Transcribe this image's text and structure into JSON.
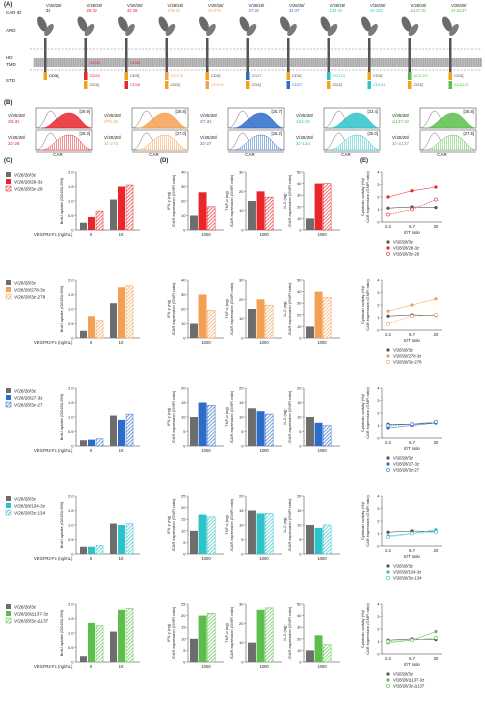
{
  "panels": {
    "a": "(A)",
    "b": "(B)",
    "c": "(C)",
    "d": "(D)",
    "e": "(E)"
  },
  "colors": {
    "gray": "#6d6d6d",
    "red": "#e8262b",
    "orange": "#f4a052",
    "blue": "#2d6cc9",
    "cyan": "#2ec3c9",
    "green": "#5cbf4b",
    "dark": "#333333"
  },
  "diagram": {
    "region_labels": [
      "CAR ID",
      "ARD",
      "HD",
      "TMD",
      "STD"
    ],
    "constructs": [
      {
        "name": [
          "V/28/28/",
          "3z"
        ],
        "color": "#6d6d6d",
        "domains": [
          "",
          "CD3ζ"
        ]
      },
      {
        "name": [
          "V/28/28/",
          "28-3z"
        ],
        "color": "#e8262b",
        "domains": [
          "CD28",
          "CD3ζ"
        ]
      },
      {
        "name": [
          "V/28/28/",
          "3z-28"
        ],
        "color": "#e8262b",
        "domains": [
          "CD3ζ",
          "CD28"
        ]
      },
      {
        "name": [
          "V/28/28/",
          "278-3z"
        ],
        "color": "#f4a052",
        "domains": [
          "CD278",
          "CD3ζ"
        ]
      },
      {
        "name": [
          "V/28/28/",
          "3z-278"
        ],
        "color": "#f4a052",
        "domains": [
          "CD3ζ",
          "CD278"
        ]
      },
      {
        "name": [
          "V/28/28/",
          "27-3z"
        ],
        "color": "#2d6cc9",
        "domains": [
          "CD27",
          "CD3ζ"
        ]
      },
      {
        "name": [
          "V/28/28/",
          "3z-27"
        ],
        "color": "#2d6cc9",
        "domains": [
          "CD3ζ",
          "CD27"
        ]
      },
      {
        "name": [
          "V/28/28/",
          "134-3z"
        ],
        "color": "#2ec3c9",
        "domains": [
          "CD134",
          "CD3ζ"
        ]
      },
      {
        "name": [
          "V/28/28/",
          "3z-134"
        ],
        "color": "#2ec3c9",
        "domains": [
          "CD3ζ",
          "CD134"
        ]
      },
      {
        "name": [
          "V/28/28/",
          "Δ137-3z"
        ],
        "color": "#5cbf4b",
        "domains": [
          "ΔCD137",
          "CD3ζ"
        ]
      },
      {
        "name": [
          "V/28/28/",
          "3z-Δ137"
        ],
        "color": "#5cbf4b",
        "domains": [
          "CD3ζ",
          "ΔCD137"
        ]
      }
    ]
  },
  "histograms": {
    "xlabel": "CAR",
    "items": [
      {
        "label": [
          "V/28/28/",
          "28-3z"
        ],
        "value": "[29.9]",
        "color": "#e8262b"
      },
      {
        "label": [
          "V/28/28/",
          "3z-28"
        ],
        "value": "[29.3]",
        "color": "#e8262b"
      },
      {
        "label": [
          "V/28/28/",
          "278-3z"
        ],
        "value": "[29.8]",
        "color": "#f4a052"
      },
      {
        "label": [
          "V/28/28/",
          "3z-278"
        ],
        "value": "[27.0]",
        "color": "#f4a052"
      },
      {
        "label": [
          "V/28/28/",
          "27-3z"
        ],
        "value": "[25.7]",
        "color": "#2d6cc9"
      },
      {
        "label": [
          "V/28/28/",
          "3z-27"
        ],
        "value": "[26.2]",
        "color": "#2d6cc9"
      },
      {
        "label": [
          "V/28/28/",
          "134-3z"
        ],
        "value": "[23.4]",
        "color": "#2ec3c9"
      },
      {
        "label": [
          "V/28/28/",
          "3z-134"
        ],
        "value": "[25.0]",
        "color": "#2ec3c9"
      },
      {
        "label": [
          "V/28/28/",
          "Δ137-3z"
        ],
        "value": "[28.8]",
        "color": "#5cbf4b"
      },
      {
        "label": [
          "V/28/28/",
          "3z-Δ137"
        ],
        "value": "[27.5]",
        "color": "#5cbf4b"
      }
    ]
  },
  "chart_data": {
    "type": "bar",
    "rows": [
      {
        "color": "#e8262b",
        "legend": [
          "V/28/28/3z",
          "V/28/28/28-3z",
          "V/28/28/3z-28"
        ],
        "c": {
          "values": [
            [
              0.25,
              0.45,
              0.65
            ],
            [
              1.05,
              1.5,
              1.55
            ]
          ],
          "ymax": 2.0,
          "yticks": [
            "0",
            "0.5",
            "1.0",
            "1.5",
            "2.0"
          ]
        },
        "ifn": {
          "values": [
            10,
            26,
            16
          ],
          "ymax": 40,
          "yticks": [
            "0",
            "10",
            "20",
            "30",
            "40"
          ]
        },
        "tnf": {
          "values": [
            15,
            20,
            17
          ],
          "ymax": 30,
          "yticks": [
            "0",
            "10",
            "20",
            "30"
          ]
        },
        "il2": {
          "values": [
            10,
            40,
            40
          ],
          "ymax": 50,
          "yticks": [
            "0",
            "10",
            "20",
            "30",
            "40",
            "50"
          ]
        },
        "e": {
          "values": [
            [
              1.1,
              1.2,
              1.15
            ],
            [
              2.0,
              2.5,
              2.8
            ],
            [
              0.6,
              1.0,
              1.8
            ]
          ],
          "ymax": 4,
          "yticks": [
            "0",
            "1",
            "2",
            "3",
            "4"
          ]
        }
      },
      {
        "color": "#f4a052",
        "legend": [
          "V/28/28/3z",
          "V/28/28/278-3z",
          "V/28/28/3z-278"
        ],
        "c": {
          "values": [
            [
              0.25,
              0.75,
              0.6
            ],
            [
              1.2,
              1.75,
              1.8
            ]
          ],
          "ymax": 2.0,
          "yticks": [
            "0",
            "0.5",
            "1.0",
            "1.5",
            "2.0"
          ]
        },
        "ifn": {
          "values": [
            10,
            30,
            19
          ],
          "ymax": 40,
          "yticks": [
            "0",
            "10",
            "20",
            "30",
            "40"
          ]
        },
        "tnf": {
          "values": [
            15,
            20,
            17
          ],
          "ymax": 30,
          "yticks": [
            "0",
            "10",
            "20",
            "30"
          ]
        },
        "il2": {
          "values": [
            10,
            40,
            35
          ],
          "ymax": 50,
          "yticks": [
            "0",
            "10",
            "20",
            "30",
            "40",
            "50"
          ]
        },
        "e": {
          "values": [
            [
              1.1,
              1.2,
              1.15
            ],
            [
              1.5,
              2.0,
              2.5
            ],
            [
              0.5,
              1.1,
              1.2
            ]
          ],
          "ymax": 4,
          "yticks": [
            "0",
            "1",
            "2",
            "3",
            "4"
          ]
        }
      },
      {
        "color": "#2d6cc9",
        "legend": [
          "V/28/28/3z",
          "V/28/28/27-3z",
          "V/28/28/3z-27"
        ],
        "c": {
          "values": [
            [
              0.2,
              0.22,
              0.25
            ],
            [
              1.05,
              0.9,
              1.1
            ]
          ],
          "ymax": 2.0,
          "yticks": [
            "0",
            "0.5",
            "1.0",
            "1.5",
            "2.0"
          ]
        },
        "ifn": {
          "values": [
            10,
            15,
            14
          ],
          "ymax": 20,
          "yticks": [
            "0",
            "5",
            "10",
            "15",
            "20"
          ]
        },
        "tnf": {
          "values": [
            13,
            12,
            11
          ],
          "ymax": 20,
          "yticks": [
            "0",
            "5",
            "10",
            "15",
            "20"
          ]
        },
        "il2": {
          "values": [
            10,
            8,
            7
          ],
          "ymax": 20,
          "yticks": [
            "0",
            "5",
            "10",
            "15",
            "20"
          ]
        },
        "e": {
          "values": [
            [
              1.1,
              1.1,
              1.2
            ],
            [
              0.8,
              1.0,
              1.2
            ],
            [
              1.0,
              1.1,
              1.3
            ]
          ],
          "ymax": 4,
          "yticks": [
            "0",
            "1",
            "2",
            "3",
            "4"
          ]
        }
      },
      {
        "color": "#2ec3c9",
        "legend": [
          "V/28/28/3z",
          "V/28/28/134-3z",
          "V/28/28/3z-134"
        ],
        "c": {
          "values": [
            [
              0.25,
              0.25,
              0.3
            ],
            [
              1.05,
              1.0,
              1.05
            ]
          ],
          "ymax": 2.0,
          "yticks": [
            "0",
            "0.5",
            "1.0",
            "1.5",
            "2.0"
          ]
        },
        "ifn": {
          "values": [
            10,
            17,
            16
          ],
          "ymax": 25,
          "yticks": [
            "0",
            "5",
            "10",
            "15",
            "20",
            "25"
          ]
        },
        "tnf": {
          "values": [
            15,
            14,
            14
          ],
          "ymax": 20,
          "yticks": [
            "0",
            "5",
            "10",
            "15",
            "20"
          ]
        },
        "il2": {
          "values": [
            10,
            9,
            10
          ],
          "ymax": 20,
          "yticks": [
            "0",
            "5",
            "10",
            "15",
            "20"
          ]
        },
        "e": {
          "values": [
            [
              1.1,
              1.2,
              1.15
            ],
            [
              0.8,
              1.0,
              1.3
            ],
            [
              0.7,
              1.0,
              1.1
            ]
          ],
          "ymax": 4,
          "yticks": [
            "0",
            "1",
            "2",
            "3",
            "4"
          ]
        }
      },
      {
        "color": "#5cbf4b",
        "legend": [
          "V/28/28/3z",
          "V/28/28/Δ137-3z",
          "V/28/28/3z-Δ137"
        ],
        "c": {
          "values": [
            [
              0.2,
              1.35,
              1.25
            ],
            [
              1.05,
              1.8,
              1.85
            ]
          ],
          "ymax": 2.0,
          "yticks": [
            "0",
            "0.5",
            "1.0",
            "1.5",
            "2.0"
          ]
        },
        "ifn": {
          "values": [
            10,
            20,
            21
          ],
          "ymax": 25,
          "yticks": [
            "0",
            "5",
            "10",
            "15",
            "20",
            "25"
          ]
        },
        "tnf": {
          "values": [
            10,
            27,
            28
          ],
          "ymax": 30,
          "yticks": [
            "0",
            "10",
            "20",
            "30"
          ]
        },
        "il2": {
          "values": [
            10,
            23,
            15
          ],
          "ymax": 50,
          "yticks": [
            "0",
            "10",
            "20",
            "30",
            "40",
            "50"
          ]
        },
        "e": {
          "values": [
            [
              1.1,
              1.2,
              1.15
            ],
            [
              0.9,
              1.1,
              1.8
            ],
            [
              1.0,
              1.1,
              1.3
            ]
          ],
          "ymax": 4,
          "yticks": [
            "0",
            "1",
            "2",
            "3",
            "4"
          ]
        }
      }
    ],
    "c_labels": {
      "ylabel": "BrdU uptake (OD450-690)",
      "xlabel": "VEGFR2-Fc (ng/mL)",
      "xticks": [
        "0",
        "10"
      ]
    },
    "d_labels": {
      "ifn": "IFN-γ (ng)",
      "tnf": "TNF-α (ng)",
      "il2": "IL-2 (ng)",
      "ratio": "/CAR expression (GMFI ratio)",
      "xtick": "1000"
    },
    "e_labels": {
      "ylabel1": "Cytotoxic activity (%)/",
      "ylabel2": "CAR expression (GMFI ratio)",
      "xlabel": "E/T ratio",
      "xticks": [
        "2.2",
        "6.7",
        "20"
      ]
    }
  }
}
